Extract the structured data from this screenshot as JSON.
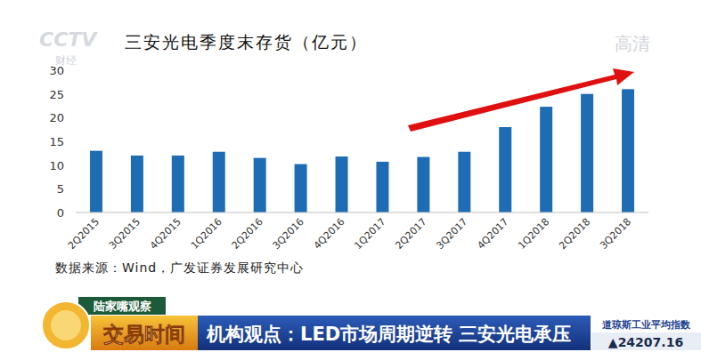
{
  "chart_data": {
    "type": "bar",
    "title": "三安光电季度末存货（亿元）",
    "categories": [
      "2Q2015",
      "3Q2015",
      "4Q2015",
      "1Q2016",
      "2Q2016",
      "3Q2016",
      "4Q2016",
      "1Q2017",
      "2Q2017",
      "3Q2017",
      "4Q2017",
      "1Q2018",
      "2Q2018",
      "3Q2018"
    ],
    "values": [
      13,
      12,
      12,
      12.8,
      11.5,
      10.2,
      11.8,
      10.7,
      11.7,
      12.8,
      18,
      22.3,
      25,
      26
    ],
    "color": "#1e6cb3",
    "ylim": [
      0,
      30
    ],
    "yticks": [
      0,
      5,
      10,
      15,
      20,
      25,
      30
    ],
    "grid": false,
    "source": "数据来源：Wind，广发证券发展研究中心"
  },
  "broadcast": {
    "logo": "CCTV",
    "logo_sub": "财经",
    "hd": "高清",
    "program_tag": "陆家嘴观察",
    "program": "交易时间",
    "headline": "机构观点：LED市场周期逆转 三安光电承压",
    "index_name": "道琼斯工业平均指数",
    "index_value": "▲24207.16"
  }
}
